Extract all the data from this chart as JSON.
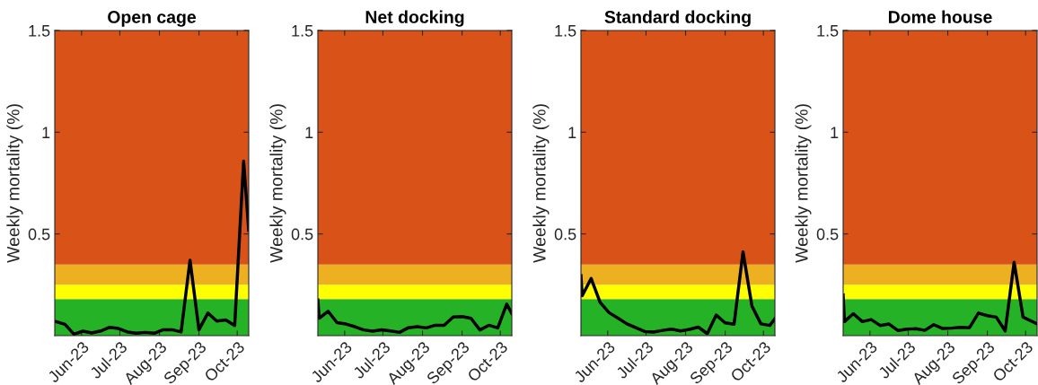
{
  "chart_data": [
    {
      "type": "line",
      "title": "Open cage",
      "ylabel": "Weekly mortality (%)",
      "xlim": [
        "2023-05-11",
        "2023-10-10"
      ],
      "ylim": [
        0,
        1.5
      ],
      "yticks": [
        0.5,
        1,
        1.5
      ],
      "xticks": [
        {
          "value": "2023-06-01",
          "label": "Jun-23"
        },
        {
          "value": "2023-07-01",
          "label": "Jul-23"
        },
        {
          "value": "2023-08-01",
          "label": "Aug-23"
        },
        {
          "value": "2023-09-01",
          "label": "Sep-23"
        },
        {
          "value": "2023-10-01",
          "label": "Oct-23"
        }
      ],
      "grid": false,
      "bands": [
        {
          "axis": "y",
          "from": 0,
          "to": 0.18,
          "color": "#26b226"
        },
        {
          "axis": "y",
          "from": 0.18,
          "to": 0.25,
          "color": "#ffff00"
        },
        {
          "axis": "y",
          "from": 0.25,
          "to": 0.35,
          "color": "#ecb021"
        },
        {
          "axis": "y",
          "from": 0.35,
          "to": 1.5,
          "color": "#d95319"
        }
      ],
      "series": [
        {
          "color": "#000000",
          "x": [
            "2023-05-12",
            "2023-05-19",
            "2023-05-26",
            "2023-06-02",
            "2023-06-09",
            "2023-06-16",
            "2023-06-23",
            "2023-06-30",
            "2023-07-07",
            "2023-07-14",
            "2023-07-21",
            "2023-07-28",
            "2023-08-04",
            "2023-08-11",
            "2023-08-18",
            "2023-08-25",
            "2023-09-01",
            "2023-09-08",
            "2023-09-15",
            "2023-09-22",
            "2023-09-29",
            "2023-10-06",
            "2023-10-10"
          ],
          "values": [
            0.069,
            0.056,
            0.007,
            0.022,
            0.013,
            0.023,
            0.041,
            0.035,
            0.018,
            0.012,
            0.016,
            0.012,
            0.029,
            0.029,
            0.018,
            0.371,
            0.029,
            0.111,
            0.072,
            0.077,
            0.05,
            0.858,
            0.518
          ]
        }
      ]
    },
    {
      "type": "line",
      "title": "Net docking",
      "ylabel": "Weekly mortality (%)",
      "xlim": [
        "2023-05-11",
        "2023-10-10"
      ],
      "ylim": [
        0,
        1.5
      ],
      "yticks": [
        0.5,
        1,
        1.5
      ],
      "xticks": [
        {
          "value": "2023-06-01",
          "label": "Jun-23"
        },
        {
          "value": "2023-07-01",
          "label": "Jul-23"
        },
        {
          "value": "2023-08-01",
          "label": "Aug-23"
        },
        {
          "value": "2023-09-01",
          "label": "Sep-23"
        },
        {
          "value": "2023-10-01",
          "label": "Oct-23"
        }
      ],
      "grid": false,
      "bands": [
        {
          "axis": "y",
          "from": 0,
          "to": 0.18,
          "color": "#26b226"
        },
        {
          "axis": "y",
          "from": 0.18,
          "to": 0.25,
          "color": "#ffff00"
        },
        {
          "axis": "y",
          "from": 0.25,
          "to": 0.35,
          "color": "#ecb021"
        },
        {
          "axis": "y",
          "from": 0.35,
          "to": 1.5,
          "color": "#d95319"
        }
      ],
      "series": [
        {
          "color": "#000000",
          "x": [
            "2023-05-11",
            "2023-05-12",
            "2023-05-19",
            "2023-05-26",
            "2023-06-02",
            "2023-06-09",
            "2023-06-16",
            "2023-06-23",
            "2023-06-30",
            "2023-07-07",
            "2023-07-14",
            "2023-07-21",
            "2023-07-28",
            "2023-08-04",
            "2023-08-11",
            "2023-08-18",
            "2023-08-25",
            "2023-09-01",
            "2023-09-08",
            "2023-09-15",
            "2023-09-22",
            "2023-09-29",
            "2023-10-06",
            "2023-10-10"
          ],
          "values": [
            0.175,
            0.086,
            0.12,
            0.064,
            0.057,
            0.044,
            0.028,
            0.022,
            0.029,
            0.023,
            0.016,
            0.039,
            0.044,
            0.038,
            0.051,
            0.051,
            0.092,
            0.094,
            0.085,
            0.028,
            0.051,
            0.038,
            0.155,
            0.108
          ]
        }
      ]
    },
    {
      "type": "line",
      "title": "Standard docking",
      "ylabel": "Weekly mortality (%)",
      "xlim": [
        "2023-05-11",
        "2023-10-10"
      ],
      "ylim": [
        0,
        1.5
      ],
      "yticks": [
        0.5,
        1,
        1.5
      ],
      "xticks": [
        {
          "value": "2023-06-01",
          "label": "Jun-23"
        },
        {
          "value": "2023-07-01",
          "label": "Jul-23"
        },
        {
          "value": "2023-08-01",
          "label": "Aug-23"
        },
        {
          "value": "2023-09-01",
          "label": "Sep-23"
        },
        {
          "value": "2023-10-01",
          "label": "Oct-23"
        }
      ],
      "grid": false,
      "bands": [
        {
          "axis": "y",
          "from": 0,
          "to": 0.18,
          "color": "#26b226"
        },
        {
          "axis": "y",
          "from": 0.18,
          "to": 0.25,
          "color": "#ffff00"
        },
        {
          "axis": "y",
          "from": 0.25,
          "to": 0.35,
          "color": "#ecb021"
        },
        {
          "axis": "y",
          "from": 0.35,
          "to": 1.5,
          "color": "#d95319"
        }
      ],
      "series": [
        {
          "color": "#000000",
          "x": [
            "2023-05-11",
            "2023-05-12",
            "2023-05-19",
            "2023-05-26",
            "2023-06-02",
            "2023-06-09",
            "2023-06-16",
            "2023-06-23",
            "2023-06-30",
            "2023-07-07",
            "2023-07-14",
            "2023-07-21",
            "2023-07-28",
            "2023-08-04",
            "2023-08-11",
            "2023-08-18",
            "2023-08-25",
            "2023-09-01",
            "2023-09-08",
            "2023-09-15",
            "2023-09-22",
            "2023-09-29",
            "2023-10-06",
            "2023-10-10"
          ],
          "values": [
            0.295,
            0.196,
            0.281,
            0.164,
            0.113,
            0.086,
            0.058,
            0.039,
            0.02,
            0.018,
            0.026,
            0.032,
            0.023,
            0.031,
            0.042,
            0.01,
            0.101,
            0.063,
            0.056,
            0.412,
            0.146,
            0.058,
            0.05,
            0.083
          ]
        }
      ]
    },
    {
      "type": "line",
      "title": "Dome house",
      "ylabel": "Weekly mortality (%)",
      "xlim": [
        "2023-05-11",
        "2023-10-10"
      ],
      "ylim": [
        0,
        1.5
      ],
      "yticks": [
        0.5,
        1,
        1.5
      ],
      "xticks": [
        {
          "value": "2023-06-01",
          "label": "Jun-23"
        },
        {
          "value": "2023-07-01",
          "label": "Jul-23"
        },
        {
          "value": "2023-08-01",
          "label": "Aug-23"
        },
        {
          "value": "2023-09-01",
          "label": "Sep-23"
        },
        {
          "value": "2023-10-01",
          "label": "Oct-23"
        }
      ],
      "grid": false,
      "bands": [
        {
          "axis": "y",
          "from": 0,
          "to": 0.18,
          "color": "#26b226"
        },
        {
          "axis": "y",
          "from": 0.18,
          "to": 0.25,
          "color": "#ffff00"
        },
        {
          "axis": "y",
          "from": 0.25,
          "to": 0.35,
          "color": "#ecb021"
        },
        {
          "axis": "y",
          "from": 0.35,
          "to": 1.5,
          "color": "#d95319"
        }
      ],
      "series": [
        {
          "color": "#000000",
          "x": [
            "2023-05-11",
            "2023-05-12",
            "2023-05-19",
            "2023-05-26",
            "2023-06-02",
            "2023-06-09",
            "2023-06-16",
            "2023-06-23",
            "2023-06-30",
            "2023-07-07",
            "2023-07-14",
            "2023-07-21",
            "2023-07-28",
            "2023-08-04",
            "2023-08-11",
            "2023-08-18",
            "2023-08-25",
            "2023-09-01",
            "2023-09-08",
            "2023-09-15",
            "2023-09-22",
            "2023-09-29",
            "2023-10-10"
          ],
          "values": [
            0.2,
            0.069,
            0.108,
            0.069,
            0.079,
            0.05,
            0.057,
            0.025,
            0.032,
            0.034,
            0.026,
            0.054,
            0.035,
            0.037,
            0.041,
            0.039,
            0.111,
            0.098,
            0.091,
            0.023,
            0.361,
            0.091,
            0.058
          ]
        }
      ]
    }
  ]
}
